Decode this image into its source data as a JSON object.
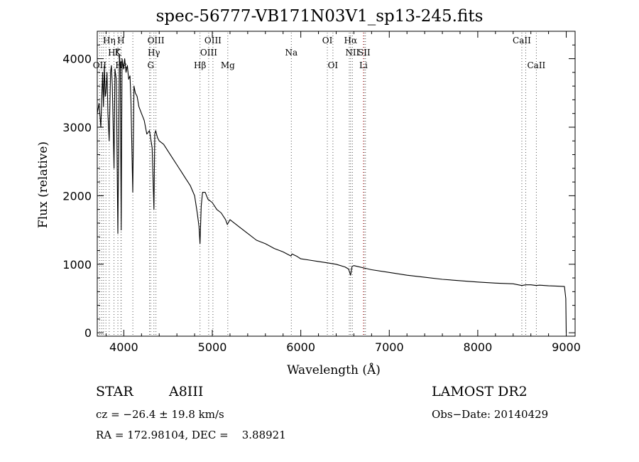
{
  "chart_data": {
    "type": "line",
    "title": "spec-56777-VB171N03V1_sp13-245.fits",
    "xlabel": "Wavelength (Å)",
    "ylabel": "Flux (relative)",
    "xlim": [
      3700,
      9100
    ],
    "ylim": [
      -50,
      4400
    ],
    "xticks": [
      4000,
      5000,
      6000,
      7000,
      8000,
      9000
    ],
    "yticks": [
      0,
      1000,
      2000,
      3000,
      4000
    ],
    "grid": false,
    "series": [
      {
        "x": [
          3700,
          3720,
          3740,
          3760,
          3770,
          3780,
          3790,
          3797,
          3810,
          3820,
          3835,
          3850,
          3860,
          3870,
          3889,
          3900,
          3915,
          3933,
          3950,
          3960,
          3970,
          3980,
          3995,
          4010,
          4025,
          4040,
          4055,
          4070,
          4080,
          4101,
          4115,
          4130,
          4150,
          4170,
          4200,
          4230,
          4260,
          4290,
          4320,
          4340,
          4350,
          4360,
          4380,
          4400,
          4450,
          4500,
          4550,
          4600,
          4650,
          4700,
          4750,
          4800,
          4830,
          4850,
          4861,
          4875,
          4890,
          4920,
          4950,
          5000,
          5050,
          5100,
          5150,
          5170,
          5200,
          5300,
          5400,
          5500,
          5600,
          5700,
          5800,
          5890,
          5900,
          5950,
          6000,
          6100,
          6200,
          6300,
          6400,
          6500,
          6540,
          6563,
          6580,
          6600,
          6700,
          6800,
          7000,
          7200,
          7400,
          7600,
          7800,
          8000,
          8200,
          8400,
          8498,
          8542,
          8600,
          8662,
          8700,
          8800,
          8900,
          8980,
          8995,
          9000
        ],
        "y": [
          3200,
          3350,
          3000,
          3800,
          3300,
          3900,
          3450,
          3500,
          3800,
          3200,
          2800,
          3800,
          3900,
          3600,
          2400,
          3850,
          3700,
          1450,
          4050,
          3900,
          1500,
          4000,
          3850,
          4000,
          3800,
          3900,
          3700,
          3750,
          3400,
          2050,
          3600,
          3500,
          3450,
          3300,
          3200,
          3100,
          2900,
          2950,
          2700,
          1800,
          2900,
          2950,
          2850,
          2800,
          2750,
          2650,
          2550,
          2450,
          2350,
          2250,
          2150,
          2000,
          1750,
          1550,
          1300,
          1850,
          2050,
          2050,
          1950,
          1900,
          1800,
          1750,
          1650,
          1580,
          1650,
          1550,
          1450,
          1350,
          1300,
          1230,
          1180,
          1120,
          1150,
          1120,
          1080,
          1060,
          1040,
          1020,
          1000,
          960,
          930,
          840,
          970,
          980,
          950,
          920,
          880,
          840,
          810,
          780,
          760,
          740,
          725,
          715,
          690,
          700,
          700,
          690,
          695,
          685,
          680,
          675,
          500,
          0
        ]
      }
    ],
    "annotations": {
      "top_row": [
        {
          "label": "Hη",
          "wavelength": 3835
        },
        {
          "label": "H",
          "wavelength": 3968
        },
        {
          "label": "OIII",
          "wavelength": 4363
        },
        {
          "label": "OIII",
          "wavelength": 5007
        },
        {
          "label": "OI",
          "wavelength": 6300
        },
        {
          "label": "Hα",
          "wavelength": 6563
        },
        {
          "label": "CaII",
          "wavelength": 8498
        }
      ],
      "second_row": [
        {
          "label": "Hζ",
          "wavelength": 3889
        },
        {
          "label": "K",
          "wavelength": 3933
        },
        {
          "label": "Hγ",
          "wavelength": 4340
        },
        {
          "label": "OIII",
          "wavelength": 4959
        },
        {
          "label": "Na",
          "wavelength": 5893
        },
        {
          "label": "NII",
          "wavelength": 6583
        },
        {
          "label": "SII",
          "wavelength": 6716
        }
      ],
      "third_row": [
        {
          "label": "OII",
          "wavelength": 3727
        },
        {
          "label": "Hε",
          "wavelength": 3970
        },
        {
          "label": "G",
          "wavelength": 4304
        },
        {
          "label": "Hβ",
          "wavelength": 4861
        },
        {
          "label": "Mg",
          "wavelength": 5175
        },
        {
          "label": "OI",
          "wavelength": 6363
        },
        {
          "label": "Li",
          "wavelength": 6708
        },
        {
          "label": "CaII",
          "wavelength": 8662
        }
      ],
      "extra_lines": [
        3750,
        3771,
        3798,
        4102,
        4290,
        4340,
        4959,
        5893,
        6300,
        6363,
        6548,
        6563,
        6583,
        6708,
        6716,
        6731,
        8498,
        8542,
        8662
      ],
      "red_lines": [
        6708
      ]
    }
  },
  "info": {
    "object_class": "STAR",
    "subclass": "A8III",
    "survey": "LAMOST DR2",
    "redshift_text": "cz = −26.4 ± 19.8 km/s",
    "obs_date": "Obs−Date: 20140429",
    "coords": "RA = 172.98104, DEC =    3.88921"
  },
  "colors": {
    "line": "#000000",
    "marker_lines": "#555555",
    "red_marker": "#cc0000"
  }
}
